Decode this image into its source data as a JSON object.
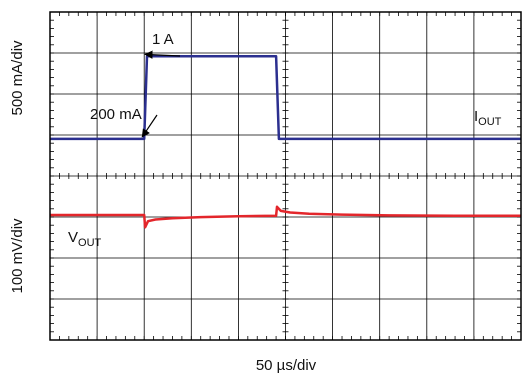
{
  "chart_data": {
    "type": "line",
    "x_scale_label": "50 µs/div",
    "upper_scale_label": "500 mA/div",
    "lower_scale_label": "100 mV/div",
    "grid": true,
    "divisions": {
      "x": 10,
      "y": 8
    },
    "series": [
      {
        "name": "I_OUT",
        "label_main": "I",
        "label_sub": "OUT",
        "color": "#2b2f8f",
        "unit": "mA",
        "x_us": [
          0,
          100,
          103,
          240,
          243,
          500
        ],
        "y": [
          200,
          200,
          1000,
          1000,
          200,
          200
        ]
      },
      {
        "name": "V_OUT",
        "label_main": "V",
        "label_sub": "OUT",
        "color": "#e3262b",
        "unit": "mV (relative)",
        "x_us": [
          0,
          100,
          101,
          104,
          112,
          130,
          160,
          200,
          240,
          241,
          245,
          255,
          275,
          310,
          360,
          430,
          500
        ],
        "y": [
          0,
          0,
          -30,
          -15,
          -11,
          -8,
          -5,
          -3,
          -2,
          20,
          10,
          6,
          3,
          1,
          -1,
          -2,
          -2
        ]
      }
    ],
    "annotations": [
      {
        "id": "one-amp",
        "text": "1 A",
        "points_to_us": 103,
        "points_to_value": 1000
      },
      {
        "id": "two-hundred-ma",
        "text": "200 mA",
        "points_to_us": 100,
        "points_to_value": 200
      }
    ]
  }
}
